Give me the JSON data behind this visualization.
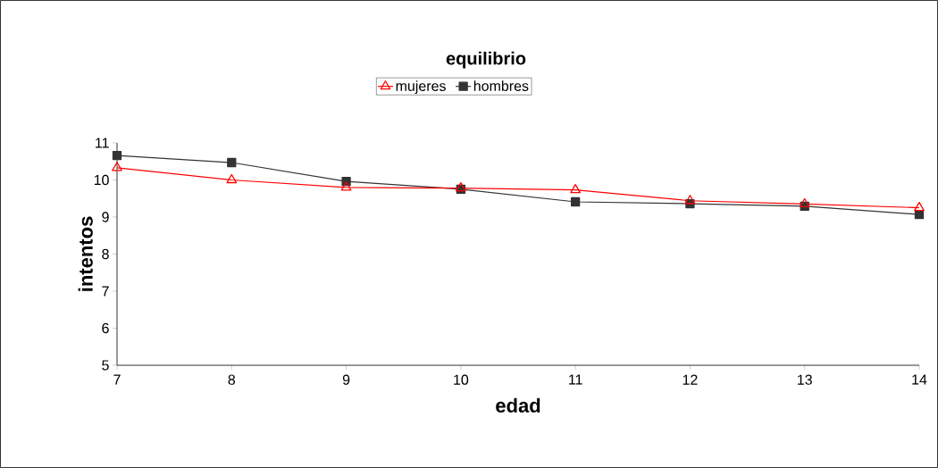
{
  "chart_data": {
    "type": "line",
    "title": "equilibrio",
    "xlabel": "edad",
    "ylabel": "intentos",
    "x": [
      7,
      8,
      9,
      10,
      11,
      12,
      13,
      14
    ],
    "series": [
      {
        "name": "mujeres",
        "color": "#ff0000",
        "marker": "triangle",
        "values": [
          10.33,
          10.0,
          9.8,
          9.78,
          9.73,
          9.44,
          9.35,
          9.25
        ]
      },
      {
        "name": "hombres",
        "color": "#333333",
        "marker": "square",
        "values": [
          10.66,
          10.47,
          9.96,
          9.75,
          9.41,
          9.36,
          9.29,
          9.07
        ]
      }
    ],
    "xlim": [
      7,
      14
    ],
    "xticks": [
      7,
      8,
      9,
      10,
      11,
      12,
      13,
      14
    ],
    "ylim": [
      5,
      11
    ],
    "yticks": [
      5,
      6,
      7,
      8,
      9,
      10,
      11
    ],
    "grid": false,
    "legend": "top",
    "line_style": "solid"
  }
}
